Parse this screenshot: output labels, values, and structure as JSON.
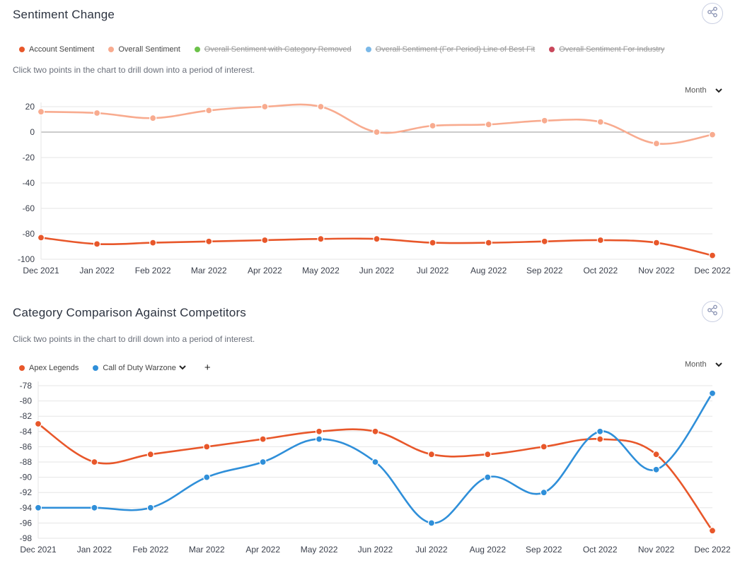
{
  "panel1": {
    "title": "Sentiment Change",
    "hint": "Click two points in the chart to drill down into a period of interest.",
    "period": "Month",
    "legend": [
      {
        "label": "Account Sentiment",
        "color": "#e8572a",
        "active": true
      },
      {
        "label": "Overall Sentiment",
        "color": "#f8ab8f",
        "active": true
      },
      {
        "label": "Overall Sentiment with Category Removed",
        "color": "#6cc24a",
        "active": false
      },
      {
        "label": "Overall Sentiment (For Period) Line of Best Fit",
        "color": "#7ab8e8",
        "active": false
      },
      {
        "label": "Overall Sentiment For Industry",
        "color": "#c9485b",
        "active": false
      }
    ]
  },
  "panel2": {
    "title": "Category Comparison Against Competitors",
    "hint": "Click two points in the chart to drill down into a period of interest.",
    "period": "Month",
    "legend": [
      {
        "label": "Apex Legends",
        "color": "#e8572a"
      },
      {
        "label": "Call of Duty Warzone",
        "color": "#2f8fd9"
      }
    ],
    "add_label": "+"
  },
  "chart_data": [
    {
      "type": "line",
      "title": "Sentiment Change",
      "categories": [
        "Dec 2021",
        "Jan 2022",
        "Feb 2022",
        "Mar 2022",
        "Apr 2022",
        "May 2022",
        "Jun 2022",
        "Jul 2022",
        "Aug 2022",
        "Sep 2022",
        "Oct 2022",
        "Nov 2022",
        "Dec 2022"
      ],
      "ylim": [
        -100,
        20
      ],
      "yticks": [
        20,
        0,
        -20,
        -40,
        -60,
        -80,
        -100
      ],
      "grid": true,
      "series": [
        {
          "name": "Overall Sentiment",
          "color": "#f8ab8f",
          "values": [
            16,
            15,
            11,
            17,
            20,
            20,
            0,
            5,
            6,
            9,
            8,
            -9,
            -2
          ]
        },
        {
          "name": "Account Sentiment",
          "color": "#e8572a",
          "values": [
            -83,
            -88,
            -87,
            -86,
            -85,
            -84,
            -84,
            -87,
            -87,
            -86,
            -85,
            -87,
            -97
          ]
        }
      ]
    },
    {
      "type": "line",
      "title": "Category Comparison Against Competitors",
      "categories": [
        "Dec 2021",
        "Jan 2022",
        "Feb 2022",
        "Mar 2022",
        "Apr 2022",
        "May 2022",
        "Jun 2022",
        "Jul 2022",
        "Aug 2022",
        "Sep 2022",
        "Oct 2022",
        "Nov 2022",
        "Dec 2022"
      ],
      "ylim": [
        -98,
        -78
      ],
      "yticks": [
        -78,
        -80,
        -82,
        -84,
        -86,
        -88,
        -90,
        -92,
        -94,
        -96,
        -98
      ],
      "grid": true,
      "series": [
        {
          "name": "Apex Legends",
          "color": "#e8572a",
          "values": [
            -83,
            -88,
            -87,
            -86,
            -85,
            -84,
            -84,
            -87,
            -87,
            -86,
            -85,
            -87,
            -97
          ]
        },
        {
          "name": "Call of Duty Warzone",
          "color": "#2f8fd9",
          "values": [
            -94,
            -94,
            -94,
            -90,
            -88,
            -85,
            -88,
            -96,
            -90,
            -92,
            -84,
            -89,
            -79
          ]
        }
      ]
    }
  ]
}
